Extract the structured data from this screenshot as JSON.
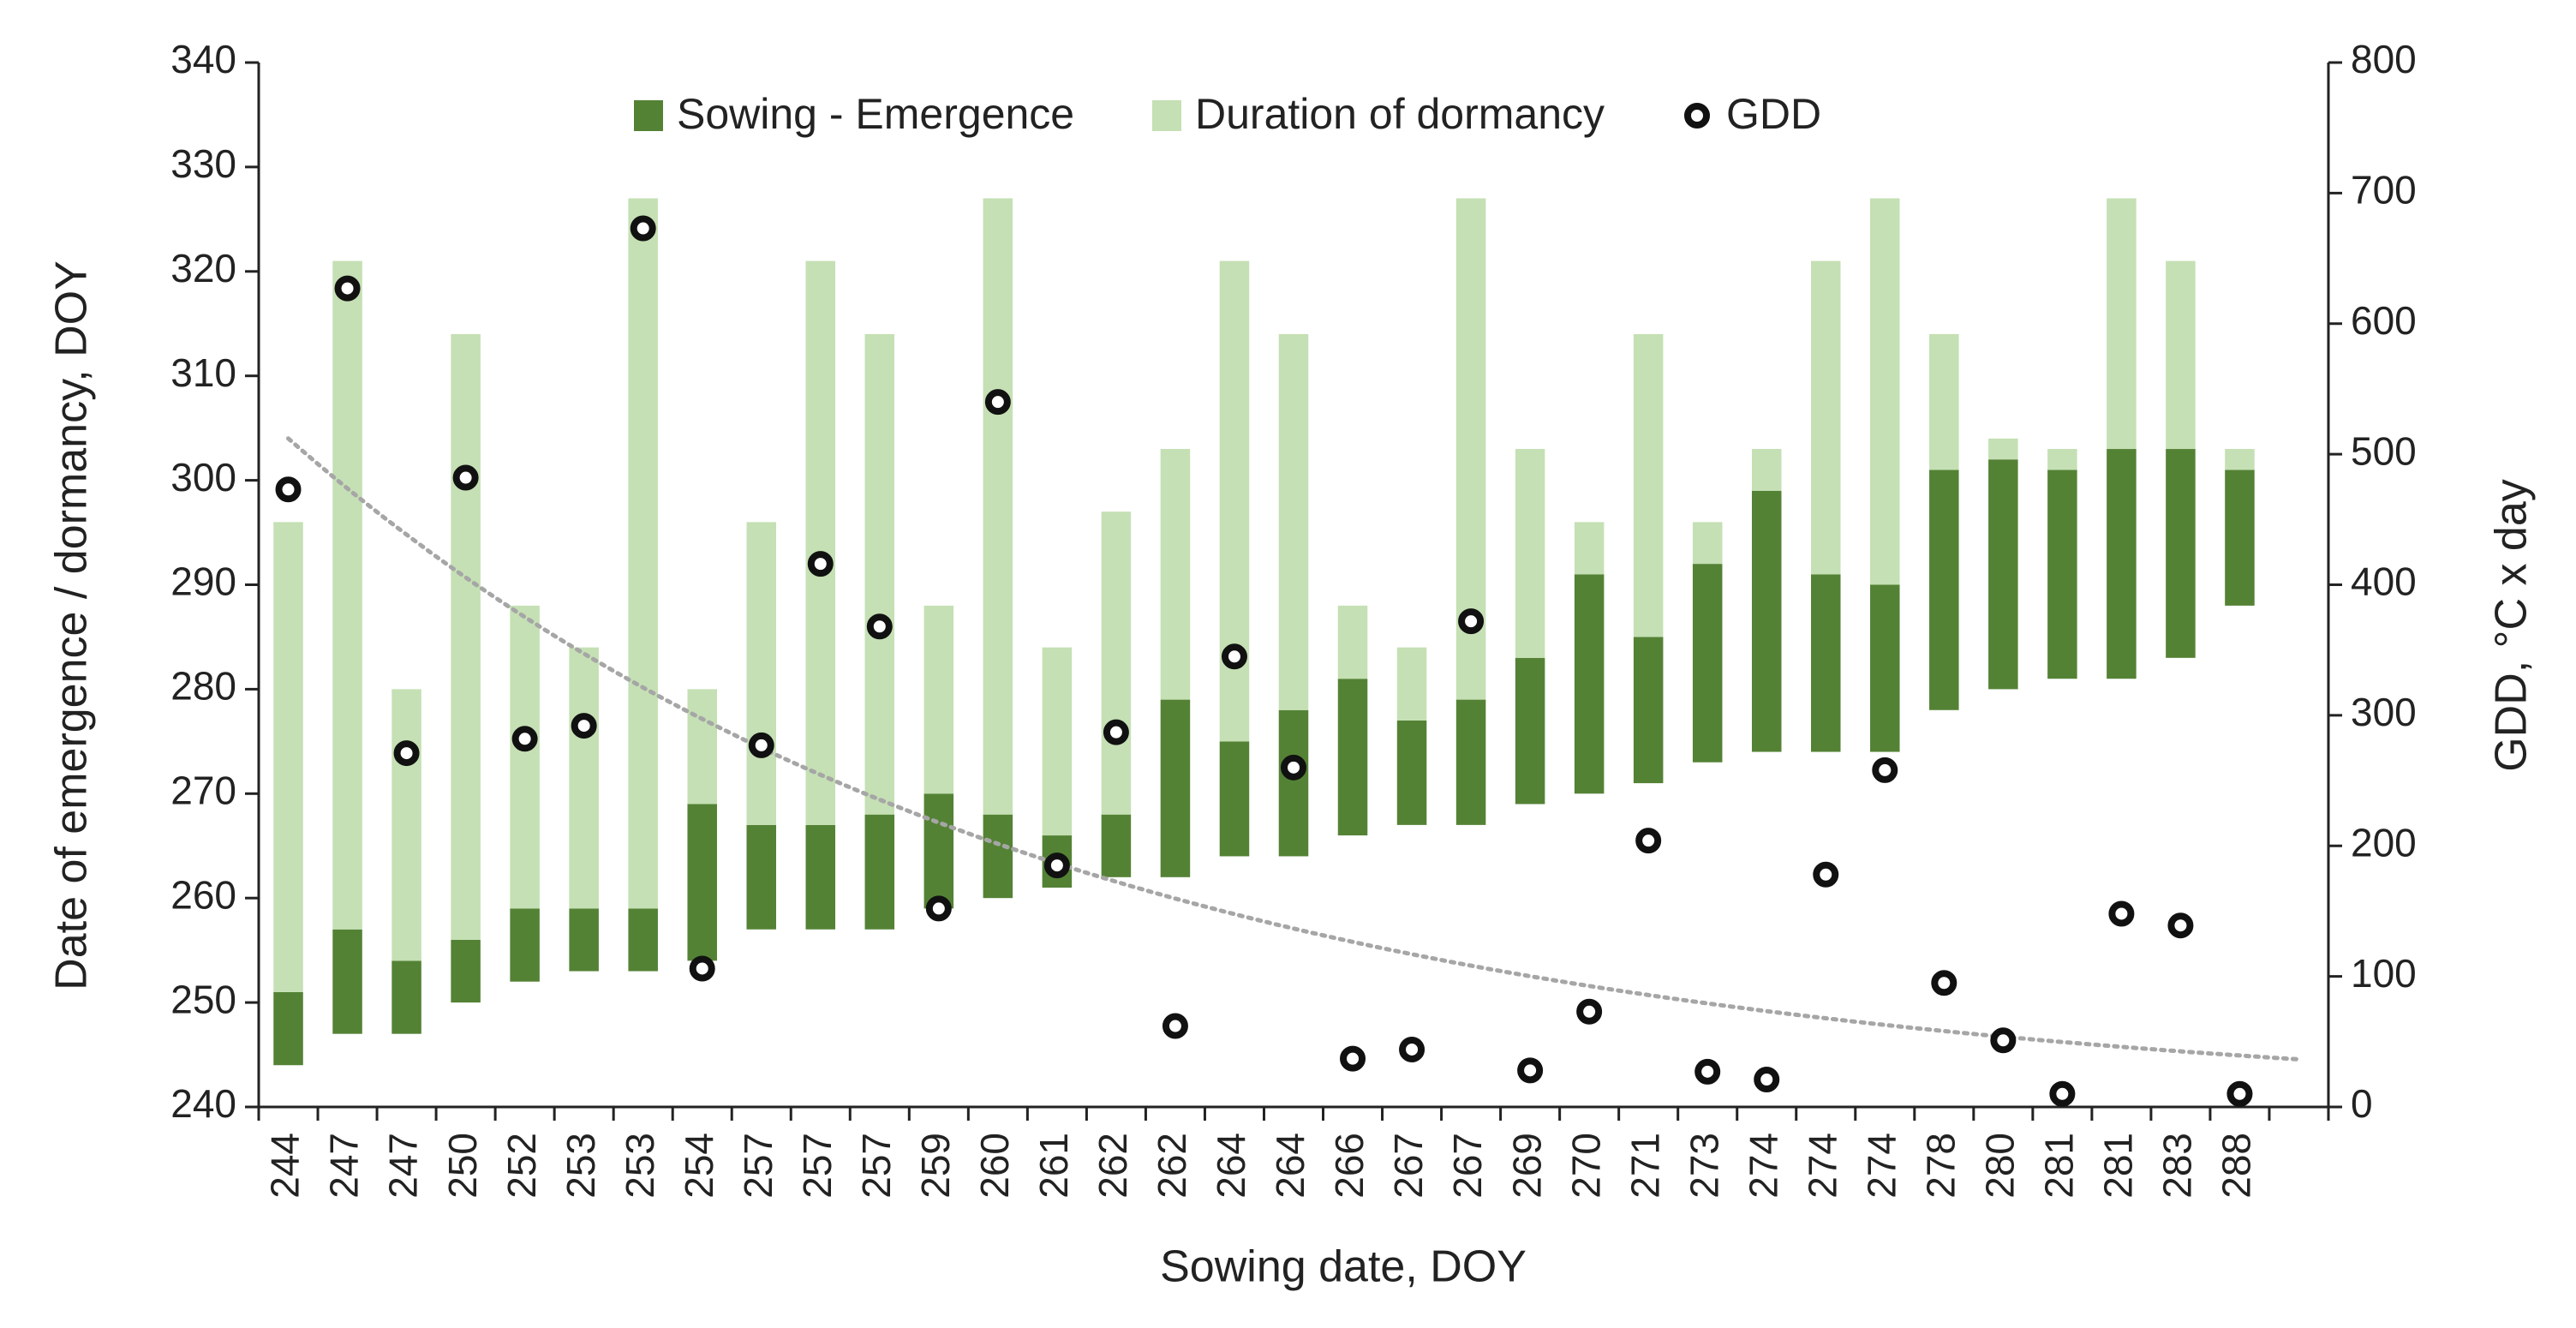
{
  "chart_data": {
    "type": "floating_bar",
    "xlabel": "Sowing date, DOY",
    "ylabel": "Date of emergence / dormancy,  DOY",
    "y2label": "GDD, °C x day",
    "categories": [
      244,
      247,
      247,
      250,
      252,
      253,
      253,
      254,
      257,
      257,
      257,
      259,
      260,
      261,
      262,
      262,
      264,
      264,
      266,
      267,
      267,
      269,
      270,
      271,
      273,
      274,
      274,
      274,
      278,
      280,
      281,
      281,
      283,
      288,
      null
    ],
    "series": [
      {
        "name": "Sowing - Emergence",
        "color": "#548235",
        "values": [
          7,
          10,
          7,
          6,
          7,
          6,
          6,
          15,
          10,
          10,
          11,
          11,
          8,
          5,
          6,
          17,
          11,
          14,
          15,
          10,
          12,
          14,
          21,
          14,
          19,
          25,
          17,
          16,
          23,
          22,
          20,
          22,
          20,
          13,
          null
        ]
      },
      {
        "name": "Duration of dormancy",
        "color": "#c5e0b4",
        "values": [
          45,
          64,
          26,
          58,
          29,
          25,
          68,
          11,
          29,
          54,
          46,
          18,
          59,
          18,
          29,
          24,
          46,
          36,
          7,
          7,
          48,
          20,
          5,
          29,
          4,
          4,
          30,
          37,
          13,
          2,
          2,
          24,
          18,
          2,
          null
        ]
      },
      {
        "name": "GDD",
        "color": "#111111",
        "axis": "y2",
        "marker": "ring",
        "values": [
          473,
          627,
          271,
          482,
          282,
          292,
          673,
          106,
          277,
          416,
          368,
          152,
          540,
          185,
          287,
          62,
          345,
          260,
          37,
          44,
          372,
          28,
          73,
          204,
          27,
          21,
          178,
          258,
          95,
          51,
          10,
          148,
          139,
          10,
          null
        ]
      }
    ],
    "trendline": {
      "series": 2,
      "kind": "exponential",
      "color": "#a6a6a6"
    },
    "ylim": [
      240,
      340
    ],
    "yticks": [
      240,
      250,
      260,
      270,
      280,
      290,
      300,
      310,
      320,
      330,
      340
    ],
    "y2lim": [
      0,
      800
    ],
    "y2ticks": [
      0,
      100,
      200,
      300,
      400,
      500,
      600,
      700,
      800
    ],
    "legend": "top"
  }
}
